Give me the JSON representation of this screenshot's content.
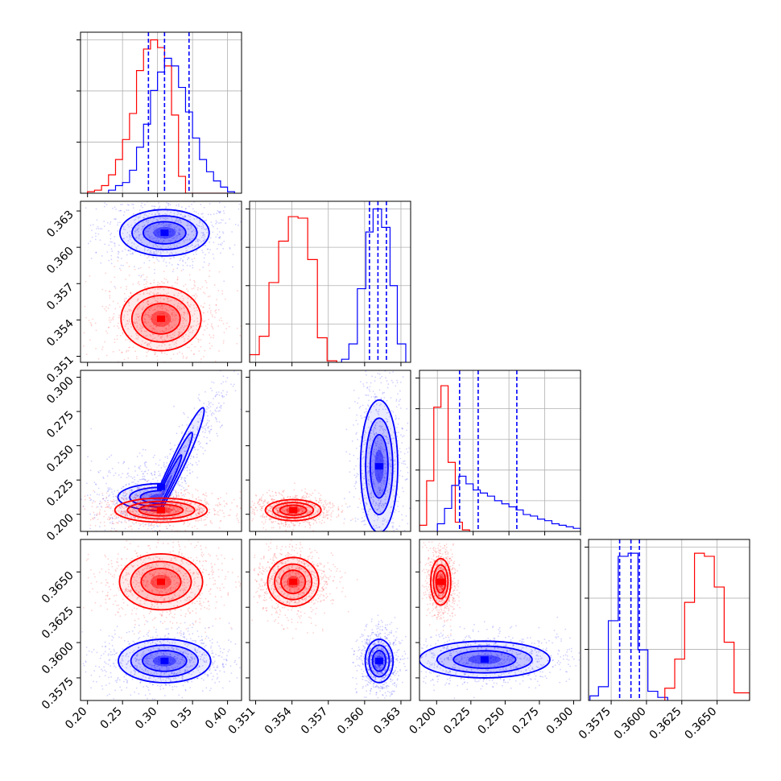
{
  "figure": {
    "colors": {
      "red": "#ff0000",
      "blue": "#0000ff",
      "grid": "#b0b0b0",
      "axis": "#000000"
    }
  },
  "chart_data": [
    {
      "type": "histogram",
      "panel": "p00",
      "xlim": [
        0.19,
        0.42
      ],
      "ylim": [
        0,
        1.05
      ],
      "x_ticks": [
        0.2,
        0.25,
        0.3,
        0.35,
        0.4
      ],
      "y_tick_positions": [
        0.333,
        0.667,
        1.0
      ],
      "grid": true,
      "dashed_lines": {
        "color": "blue",
        "x": [
          0.287,
          0.31,
          0.345
        ]
      },
      "series": [
        {
          "color": "red",
          "edges": [
            0.2,
            0.21,
            0.22,
            0.23,
            0.24,
            0.25,
            0.26,
            0.27,
            0.28,
            0.29,
            0.3,
            0.31,
            0.32,
            0.33,
            0.34,
            0.35,
            0.36,
            0.37,
            0.38,
            0.39,
            0.4
          ],
          "counts": [
            0.01,
            0.02,
            0.05,
            0.12,
            0.22,
            0.35,
            0.52,
            0.8,
            0.94,
            1.0,
            0.95,
            0.83,
            0.51,
            0.11,
            0,
            0,
            0,
            0,
            0,
            0
          ]
        },
        {
          "color": "blue",
          "edges": [
            0.23,
            0.24,
            0.25,
            0.26,
            0.27,
            0.28,
            0.29,
            0.3,
            0.31,
            0.32,
            0.33,
            0.34,
            0.35,
            0.36,
            0.37,
            0.38,
            0.39,
            0.4,
            0.41
          ],
          "counts": [
            0.02,
            0.05,
            0.07,
            0.15,
            0.3,
            0.45,
            0.67,
            0.79,
            0.88,
            0.83,
            0.69,
            0.53,
            0.36,
            0.22,
            0.14,
            0.08,
            0.04,
            0.01
          ]
        }
      ]
    },
    {
      "type": "histogram",
      "panel": "p11",
      "xlim": [
        0.3505,
        0.3638
      ],
      "ylim": [
        0,
        1.05
      ],
      "x_ticks": [
        0.351,
        0.354,
        0.357,
        0.36,
        0.363
      ],
      "y_tick_positions": [
        0.25,
        0.5,
        0.75,
        1.0
      ],
      "grid": true,
      "dashed_lines": {
        "color": "blue",
        "x": [
          0.3604,
          0.3611,
          0.3618
        ]
      },
      "series": [
        {
          "color": "red",
          "edges": [
            0.3505,
            0.3513,
            0.3521,
            0.3529,
            0.3537,
            0.3545,
            0.3553,
            0.3561,
            0.3569,
            0.3577
          ],
          "counts": [
            0.05,
            0.17,
            0.52,
            0.79,
            0.95,
            0.94,
            0.67,
            0.16,
            0.01
          ]
        },
        {
          "color": "blue",
          "edges": [
            0.3581,
            0.3587,
            0.3594,
            0.3601,
            0.3607,
            0.3614,
            0.3621,
            0.3627,
            0.3634
          ],
          "counts": [
            0.02,
            0.12,
            0.48,
            0.85,
            1.0,
            0.88,
            0.5,
            0.12
          ]
        }
      ]
    },
    {
      "type": "histogram",
      "panel": "p22",
      "xlim": [
        0.1875,
        0.3
      ],
      "ylim": [
        0,
        1.05
      ],
      "x_ticks": [
        0.2,
        0.225,
        0.25,
        0.275,
        0.3
      ],
      "y_tick_positions": [
        0.2,
        0.4,
        0.6,
        0.8,
        1.0
      ],
      "grid": true,
      "dashed_lines": {
        "color": "blue",
        "x": [
          0.2155,
          0.2285,
          0.2555
        ]
      },
      "series": [
        {
          "color": "red",
          "edges": [
            0.1875,
            0.1925,
            0.1975,
            0.2025,
            0.2075,
            0.2125,
            0.2175,
            0.2225
          ],
          "counts": [
            0.04,
            0.33,
            0.81,
            0.95,
            0.45,
            0.06,
            0.01
          ]
        },
        {
          "color": "blue",
          "edges": [
            0.2,
            0.205,
            0.21,
            0.215,
            0.22,
            0.225,
            0.23,
            0.235,
            0.24,
            0.245,
            0.25,
            0.255,
            0.26,
            0.265,
            0.27,
            0.275,
            0.28,
            0.285,
            0.29,
            0.295,
            0.3
          ],
          "counts": [
            0.05,
            0.15,
            0.3,
            0.36,
            0.31,
            0.27,
            0.25,
            0.23,
            0.2,
            0.18,
            0.16,
            0.14,
            0.11,
            0.1,
            0.08,
            0.07,
            0.05,
            0.04,
            0.03,
            0.02
          ]
        }
      ]
    },
    {
      "type": "histogram",
      "panel": "p33",
      "xlim": [
        0.3559,
        0.3673
      ],
      "ylim": [
        0,
        1.05
      ],
      "x_ticks": [
        0.3575,
        0.36,
        0.3625,
        0.365
      ],
      "y_tick_positions": [
        0.333,
        0.667,
        1.0
      ],
      "grid": true,
      "dashed_lines": {
        "color": "blue",
        "x": [
          0.3581,
          0.3589,
          0.3595
        ]
      },
      "series": [
        {
          "color": "blue",
          "edges": [
            0.356,
            0.3566,
            0.3573,
            0.358,
            0.3587,
            0.3594,
            0.3601,
            0.3608,
            0.3615
          ],
          "counts": [
            0.03,
            0.09,
            0.52,
            0.94,
            0.96,
            0.33,
            0.06,
            0.02
          ]
        },
        {
          "color": "red",
          "edges": [
            0.3613,
            0.362,
            0.3627,
            0.3634,
            0.3641,
            0.3648,
            0.3655,
            0.3662,
            0.3673
          ],
          "counts": [
            0.08,
            0.27,
            0.64,
            0.96,
            0.94,
            0.74,
            0.38,
            0.05
          ]
        }
      ]
    },
    {
      "type": "contour2d",
      "panel": "p10",
      "x_param": 0,
      "y_param": 1,
      "xlim": [
        0.19,
        0.42
      ],
      "ylim": [
        0.3505,
        0.3638
      ],
      "x_ticks": [
        0.2,
        0.25,
        0.3,
        0.35,
        0.4
      ],
      "y_ticks": [
        0.351,
        0.354,
        0.357,
        0.36,
        0.363
      ],
      "grid": false,
      "blobs": [
        {
          "color": "blue",
          "center": [
            0.31,
            0.3612
          ],
          "sd": [
            0.03,
            0.0009
          ],
          "rot": -0.3
        },
        {
          "color": "red",
          "center": [
            0.305,
            0.3541
          ],
          "sd": [
            0.026,
            0.0012
          ],
          "rot": 0
        }
      ]
    },
    {
      "type": "contour2d",
      "panel": "p20",
      "x_param": 0,
      "y_param": 2,
      "xlim": [
        0.19,
        0.42
      ],
      "ylim": [
        0.1875,
        0.305
      ],
      "x_ticks": [
        0.2,
        0.25,
        0.3,
        0.35,
        0.4
      ],
      "y_ticks": [
        0.2,
        0.225,
        0.25,
        0.275,
        0.3
      ],
      "grid": false,
      "blobs": [
        {
          "color": "blue",
          "center": [
            0.305,
            0.22
          ],
          "sd": [
            0.035,
            0.025
          ],
          "rot": 0.8,
          "shape": "banana"
        },
        {
          "color": "red",
          "center": [
            0.305,
            0.203
          ],
          "sd": [
            0.03,
            0.004
          ],
          "rot": 0
        }
      ]
    },
    {
      "type": "contour2d",
      "panel": "p21",
      "x_param": 1,
      "y_param": 2,
      "xlim": [
        0.3505,
        0.3638
      ],
      "ylim": [
        0.1875,
        0.305
      ],
      "x_ticks": [
        0.351,
        0.354,
        0.357,
        0.36,
        0.363
      ],
      "y_ticks": [
        0.2,
        0.225,
        0.25,
        0.275,
        0.3
      ],
      "grid": false,
      "blobs": [
        {
          "color": "blue",
          "center": [
            0.3612,
            0.235
          ],
          "sd": [
            0.0007,
            0.022
          ],
          "rot": 0
        },
        {
          "color": "red",
          "center": [
            0.3541,
            0.203
          ],
          "sd": [
            0.0012,
            0.004
          ],
          "rot": 0.6
        }
      ]
    },
    {
      "type": "contour2d",
      "panel": "p30",
      "x_param": 0,
      "y_param": 3,
      "xlim": [
        0.19,
        0.42
      ],
      "ylim": [
        0.3559,
        0.3673
      ],
      "x_ticks": [
        0.2,
        0.25,
        0.3,
        0.35,
        0.4
      ],
      "y_ticks": [
        0.3575,
        0.36,
        0.3625,
        0.365
      ],
      "grid": false,
      "blobs": [
        {
          "color": "red",
          "center": [
            0.305,
            0.3643
          ],
          "sd": [
            0.027,
            0.0009
          ],
          "rot": 0
        },
        {
          "color": "blue",
          "center": [
            0.31,
            0.3587
          ],
          "sd": [
            0.03,
            0.0007
          ],
          "rot": 0
        }
      ]
    },
    {
      "type": "contour2d",
      "panel": "p31",
      "x_param": 1,
      "y_param": 3,
      "xlim": [
        0.3505,
        0.3638
      ],
      "ylim": [
        0.3559,
        0.3673
      ],
      "x_ticks": [
        0.351,
        0.354,
        0.357,
        0.36,
        0.363
      ],
      "y_ticks": [
        0.3575,
        0.36,
        0.3625,
        0.365
      ],
      "grid": false,
      "blobs": [
        {
          "color": "red",
          "center": [
            0.3541,
            0.3643
          ],
          "sd": [
            0.0011,
            0.0009
          ],
          "rot": 0.6
        },
        {
          "color": "blue",
          "center": [
            0.3612,
            0.3587
          ],
          "sd": [
            0.0006,
            0.0008
          ],
          "rot": 0.6
        }
      ]
    },
    {
      "type": "contour2d",
      "panel": "p32",
      "x_param": 2,
      "y_param": 3,
      "xlim": [
        0.1875,
        0.305
      ],
      "ylim": [
        0.3559,
        0.3673
      ],
      "x_ticks": [
        0.2,
        0.225,
        0.25,
        0.275,
        0.3
      ],
      "y_ticks": [
        0.3575,
        0.36,
        0.3625,
        0.365
      ],
      "grid": false,
      "blobs": [
        {
          "color": "red",
          "center": [
            0.203,
            0.3643
          ],
          "sd": [
            0.004,
            0.0009
          ],
          "rot": 0.7
        },
        {
          "color": "blue",
          "center": [
            0.235,
            0.3588
          ],
          "sd": [
            0.022,
            0.0006
          ],
          "rot": -0.2
        }
      ]
    }
  ]
}
